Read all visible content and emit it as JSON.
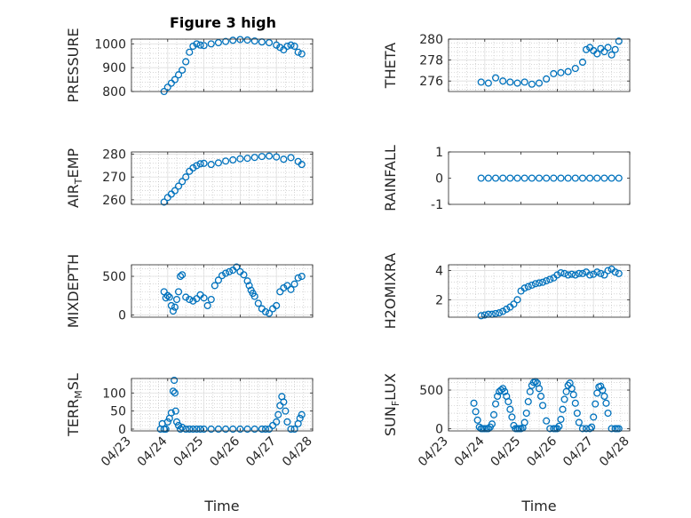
{
  "title": "Figure 3 high",
  "colors": {
    "marker": "#0072BD",
    "axis": "#262626",
    "grid": "#dfdfdf",
    "minor_grid": "#bdbdbd"
  },
  "chart_data": [
    {
      "type": "scatter",
      "ylabel": "PRESSURE",
      "xlabel": "",
      "ylim": [
        800,
        1020
      ],
      "yticks": [
        800,
        900,
        1000
      ],
      "ytick_labels": [
        "800",
        "900",
        "1000"
      ],
      "xticks_shown": false,
      "grid": true,
      "x": [
        23.9,
        24.0,
        24.1,
        24.2,
        24.3,
        24.4,
        24.5,
        24.6,
        24.7,
        24.8,
        24.9,
        25.0,
        25.2,
        25.4,
        25.6,
        25.8,
        26.0,
        26.2,
        26.4,
        26.6,
        26.8,
        27.0,
        27.1,
        27.2,
        27.3,
        27.4,
        27.5,
        27.6,
        27.7
      ],
      "values": [
        800,
        818,
        835,
        850,
        870,
        890,
        925,
        965,
        990,
        1000,
        995,
        993,
        1000,
        1005,
        1010,
        1015,
        1018,
        1016,
        1012,
        1008,
        1005,
        995,
        985,
        975,
        990,
        995,
        990,
        965,
        958
      ]
    },
    {
      "type": "scatter",
      "ylabel": "THETA",
      "xlabel": "",
      "ylim": [
        275,
        280
      ],
      "yticks": [
        276,
        278,
        280
      ],
      "ytick_labels": [
        "276",
        "278",
        "280"
      ],
      "xticks_shown": false,
      "grid": true,
      "x": [
        23.9,
        24.1,
        24.3,
        24.5,
        24.7,
        24.9,
        25.1,
        25.3,
        25.5,
        25.7,
        25.9,
        26.1,
        26.3,
        26.5,
        26.7,
        26.8,
        26.9,
        27.0,
        27.1,
        27.2,
        27.3,
        27.4,
        27.5,
        27.6,
        27.7
      ],
      "values": [
        275.9,
        275.8,
        276.3,
        276.0,
        275.9,
        275.8,
        275.9,
        275.7,
        275.8,
        276.2,
        276.7,
        276.8,
        276.9,
        277.2,
        277.8,
        279.0,
        279.2,
        278.9,
        278.6,
        279.1,
        278.8,
        279.2,
        278.5,
        279.0,
        279.8
      ]
    },
    {
      "type": "scatter",
      "ylabel": "AIR_TEMP",
      "ylabel_main": "AIR",
      "ylabel_sub": "T",
      "ylabel_rest": "EMP",
      "xlabel": "",
      "ylim": [
        258,
        281
      ],
      "yticks": [
        260,
        270,
        280
      ],
      "ytick_labels": [
        "260",
        "270",
        "280"
      ],
      "xticks_shown": false,
      "grid": true,
      "x": [
        23.9,
        24.0,
        24.1,
        24.2,
        24.3,
        24.4,
        24.5,
        24.6,
        24.7,
        24.8,
        24.9,
        25.0,
        25.2,
        25.4,
        25.6,
        25.8,
        26.0,
        26.2,
        26.4,
        26.6,
        26.8,
        27.0,
        27.2,
        27.4,
        27.6,
        27.7
      ],
      "values": [
        259,
        261,
        262.5,
        264,
        266,
        268,
        270,
        272.5,
        274,
        275,
        275.8,
        276,
        275.5,
        276.2,
        277,
        277.5,
        278,
        278.2,
        278.6,
        279,
        279.2,
        278.8,
        277.8,
        278.5,
        276.8,
        275.5
      ]
    },
    {
      "type": "scatter",
      "ylabel": "RAINFALL",
      "xlabel": "",
      "ylim": [
        -1,
        1
      ],
      "yticks": [
        -1,
        0,
        1
      ],
      "ytick_labels": [
        "-1",
        "0",
        "1"
      ],
      "xticks_shown": false,
      "grid": false,
      "x": [
        23.9,
        24.1,
        24.3,
        24.5,
        24.7,
        24.9,
        25.1,
        25.3,
        25.5,
        25.7,
        25.9,
        26.1,
        26.3,
        26.5,
        26.7,
        26.9,
        27.1,
        27.3,
        27.5,
        27.7
      ],
      "values": [
        0,
        0,
        0,
        0,
        0,
        0,
        0,
        0,
        0,
        0,
        0,
        0,
        0,
        0,
        0,
        0,
        0,
        0,
        0,
        0
      ]
    },
    {
      "type": "scatter",
      "ylabel": "MIXDEPTH",
      "xlabel": "",
      "ylim": [
        -30,
        650
      ],
      "yticks": [
        0,
        500
      ],
      "ytick_labels": [
        "0",
        "500"
      ],
      "xticks_shown": false,
      "grid": true,
      "x": [
        23.9,
        23.95,
        24.0,
        24.05,
        24.1,
        24.15,
        24.2,
        24.25,
        24.3,
        24.35,
        24.4,
        24.5,
        24.6,
        24.7,
        24.8,
        24.9,
        25.0,
        25.1,
        25.2,
        25.3,
        25.4,
        25.5,
        25.6,
        25.7,
        25.8,
        25.9,
        26.0,
        26.1,
        26.2,
        26.25,
        26.3,
        26.35,
        26.4,
        26.5,
        26.6,
        26.7,
        26.8,
        26.9,
        27.0,
        27.1,
        27.2,
        27.3,
        27.4,
        27.5,
        27.6,
        27.7
      ],
      "values": [
        300,
        220,
        250,
        230,
        120,
        50,
        100,
        200,
        300,
        500,
        520,
        230,
        200,
        180,
        210,
        260,
        220,
        120,
        200,
        380,
        450,
        510,
        540,
        560,
        580,
        620,
        560,
        520,
        440,
        380,
        320,
        280,
        240,
        150,
        80,
        40,
        20,
        80,
        120,
        300,
        350,
        380,
        330,
        400,
        480,
        500
      ]
    },
    {
      "type": "scatter",
      "ylabel": "H2OMIXRA",
      "xlabel": "",
      "ylim": [
        0.8,
        4.4
      ],
      "yticks": [
        2,
        4
      ],
      "ytick_labels": [
        "2",
        "4"
      ],
      "xticks_shown": false,
      "grid": true,
      "x": [
        23.9,
        24.0,
        24.1,
        24.2,
        24.3,
        24.4,
        24.5,
        24.6,
        24.7,
        24.8,
        24.9,
        25.0,
        25.1,
        25.2,
        25.3,
        25.4,
        25.5,
        25.6,
        25.7,
        25.8,
        25.9,
        26.0,
        26.1,
        26.2,
        26.3,
        26.4,
        26.5,
        26.6,
        26.7,
        26.8,
        26.9,
        27.0,
        27.1,
        27.2,
        27.3,
        27.4,
        27.5,
        27.6,
        27.7
      ],
      "values": [
        0.9,
        0.95,
        1.0,
        1.0,
        1.05,
        1.1,
        1.2,
        1.35,
        1.5,
        1.7,
        2.0,
        2.6,
        2.8,
        2.9,
        3.0,
        3.1,
        3.15,
        3.2,
        3.3,
        3.4,
        3.5,
        3.7,
        3.85,
        3.8,
        3.7,
        3.75,
        3.7,
        3.8,
        3.8,
        3.9,
        3.7,
        3.75,
        3.9,
        3.8,
        3.7,
        4.0,
        4.1,
        3.9,
        3.8
      ]
    },
    {
      "type": "scatter",
      "ylabel": "TERR_MSL",
      "ylabel_main": "TERR",
      "ylabel_sub": "M",
      "ylabel_rest": "SL",
      "xlabel": "Time",
      "ylim": [
        -5,
        140
      ],
      "yticks": [
        0,
        50,
        100
      ],
      "ytick_labels": [
        "0",
        "50",
        "100"
      ],
      "xticks_shown": true,
      "grid": true,
      "xticks": [
        23,
        24,
        25,
        26,
        27,
        28
      ],
      "xtick_labels": [
        "04/23",
        "04/24",
        "04/25",
        "04/26",
        "04/27",
        "04/28"
      ],
      "x": [
        23.8,
        23.85,
        23.9,
        23.95,
        24.0,
        24.05,
        24.1,
        24.15,
        24.18,
        24.2,
        24.22,
        24.25,
        24.3,
        24.35,
        24.4,
        24.5,
        24.6,
        24.7,
        24.8,
        24.9,
        25.0,
        25.2,
        25.4,
        25.6,
        25.8,
        26.0,
        26.2,
        26.4,
        26.6,
        26.7,
        26.8,
        26.9,
        27.0,
        27.05,
        27.1,
        27.15,
        27.2,
        27.25,
        27.3,
        27.4,
        27.5,
        27.6,
        27.65,
        27.7
      ],
      "values": [
        0,
        15,
        0,
        0,
        20,
        30,
        45,
        105,
        135,
        100,
        50,
        20,
        10,
        0,
        5,
        0,
        0,
        0,
        0,
        0,
        0,
        0,
        0,
        0,
        0,
        0,
        0,
        0,
        0,
        0,
        0,
        10,
        20,
        40,
        65,
        90,
        75,
        50,
        20,
        0,
        0,
        15,
        30,
        40
      ]
    },
    {
      "type": "scatter",
      "ylabel": "SUN_FLUX",
      "ylabel_main": "SUN",
      "ylabel_sub": "F",
      "ylabel_rest": "LUX",
      "xlabel": "Time",
      "ylim": [
        -30,
        650
      ],
      "yticks": [
        0,
        500
      ],
      "ytick_labels": [
        "0",
        "500"
      ],
      "xticks_shown": true,
      "grid": true,
      "xticks": [
        23,
        24,
        25,
        26,
        27,
        28
      ],
      "xtick_labels": [
        "04/23",
        "04/24",
        "04/25",
        "04/26",
        "04/27",
        "04/28"
      ],
      "x": [
        23.7,
        23.75,
        23.8,
        23.85,
        23.9,
        23.95,
        24.0,
        24.05,
        24.1,
        24.15,
        24.2,
        24.25,
        24.3,
        24.35,
        24.4,
        24.45,
        24.5,
        24.55,
        24.6,
        24.65,
        24.7,
        24.75,
        24.8,
        24.85,
        24.9,
        24.95,
        25.0,
        25.05,
        25.1,
        25.15,
        25.2,
        25.25,
        25.3,
        25.35,
        25.4,
        25.45,
        25.5,
        25.55,
        25.6,
        25.7,
        25.8,
        25.9,
        25.95,
        26.0,
        26.05,
        26.1,
        26.15,
        26.2,
        26.25,
        26.3,
        26.35,
        26.4,
        26.45,
        26.5,
        26.55,
        26.6,
        26.7,
        26.8,
        26.9,
        26.95,
        27.0,
        27.05,
        27.1,
        27.15,
        27.2,
        27.25,
        27.3,
        27.35,
        27.4,
        27.5,
        27.6,
        27.65,
        27.7
      ],
      "values": [
        330,
        220,
        110,
        20,
        0,
        0,
        0,
        0,
        0,
        20,
        60,
        180,
        320,
        420,
        480,
        500,
        520,
        480,
        420,
        350,
        250,
        150,
        40,
        0,
        0,
        0,
        0,
        10,
        80,
        200,
        350,
        480,
        560,
        600,
        610,
        590,
        520,
        420,
        300,
        100,
        0,
        0,
        0,
        0,
        30,
        120,
        250,
        380,
        480,
        560,
        590,
        520,
        440,
        330,
        200,
        80,
        0,
        0,
        0,
        20,
        150,
        320,
        460,
        540,
        550,
        500,
        420,
        330,
        200,
        0,
        0,
        0,
        0
      ]
    }
  ]
}
